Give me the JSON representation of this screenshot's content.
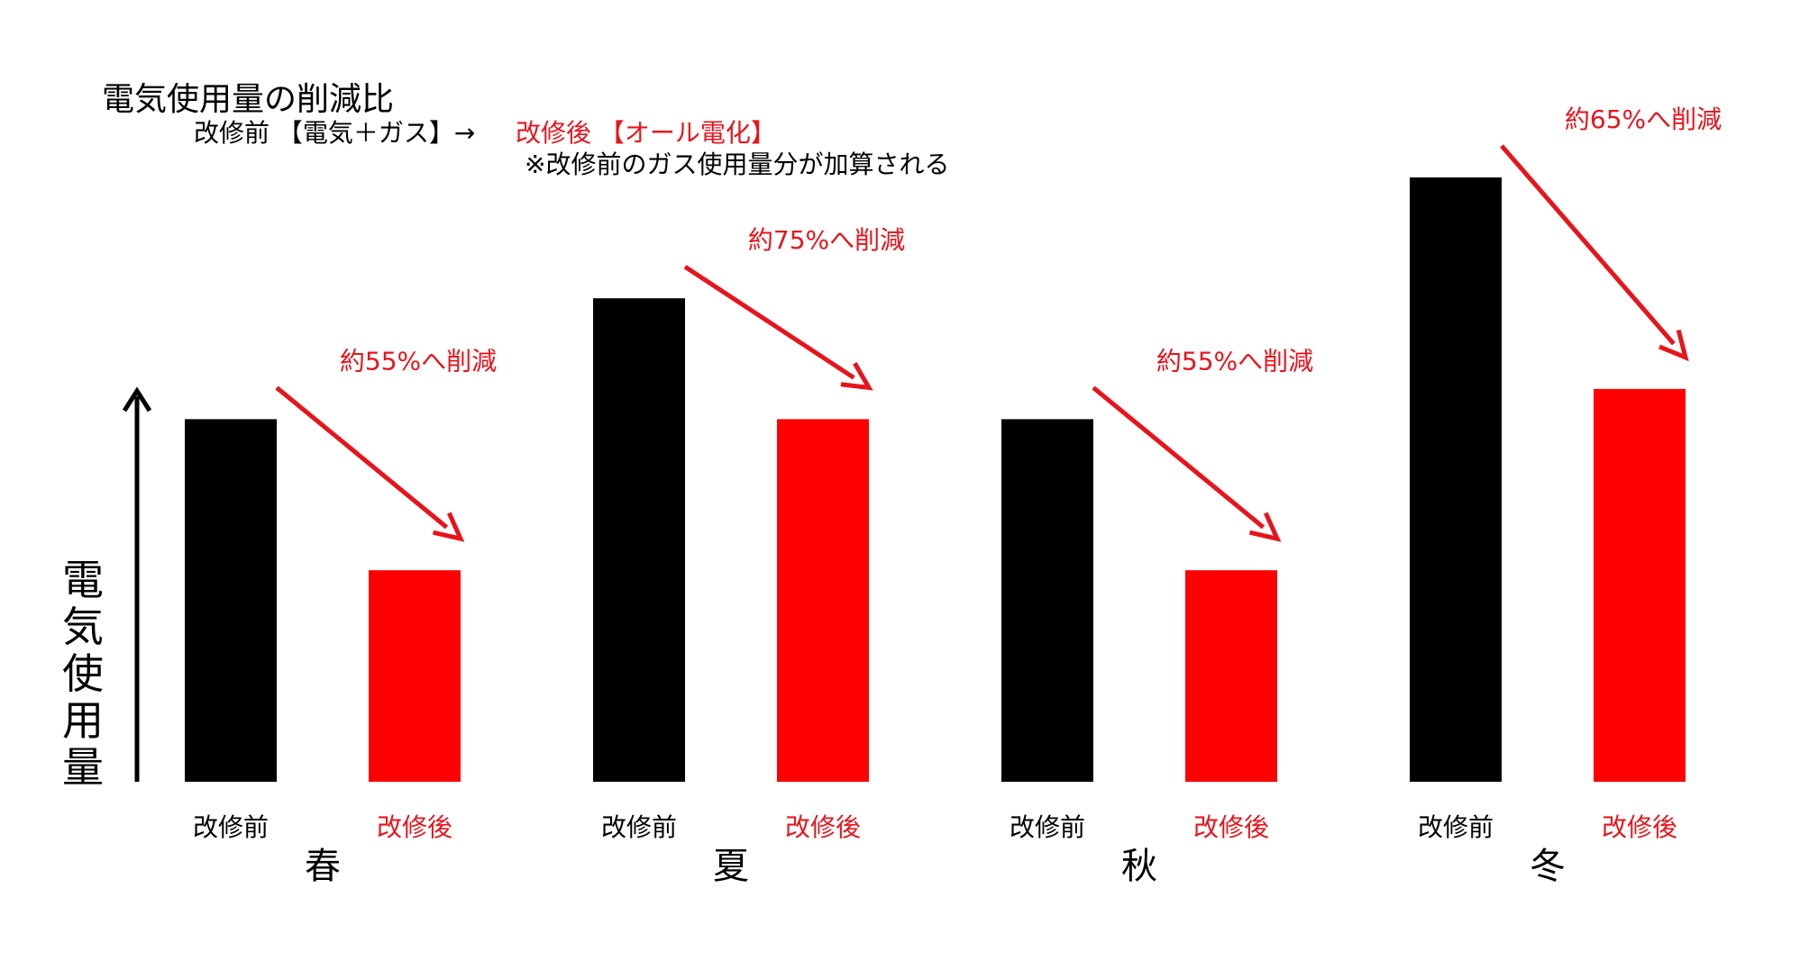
{
  "header": {
    "title": "電気使用量の削減比",
    "before_label": "改修前 【電気＋ガス】→",
    "after_label": "改修後 【オール電化】",
    "note": "※改修前のガス使用量分が加算される"
  },
  "colors": {
    "before": "#000000",
    "after": "#ff0000",
    "text": "#000000",
    "annotation": "#e8141c"
  },
  "chart_data": {
    "type": "bar",
    "title": "電気使用量の削減比",
    "ylabel": "電気使用量",
    "xlabel": "",
    "grid": false,
    "legend": "none",
    "ylim": [
      0,
      100
    ],
    "categories": [
      "春",
      "夏",
      "秋",
      "冬"
    ],
    "bar_labels": [
      "改修前",
      "改修後"
    ],
    "series": [
      {
        "name": "改修前",
        "values": [
          60,
          80,
          60,
          100
        ]
      },
      {
        "name": "改修後",
        "values": [
          35,
          60,
          35,
          65
        ]
      }
    ],
    "annotations": [
      "約55%へ削減",
      "約75%へ削減",
      "約55%へ削減",
      "約65%へ削減"
    ]
  }
}
